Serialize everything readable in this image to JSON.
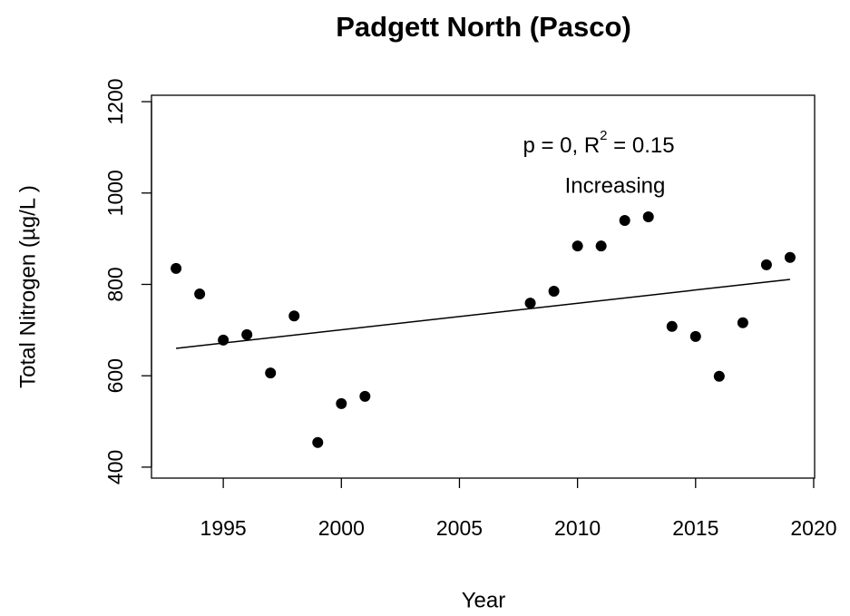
{
  "chart_data": {
    "type": "scatter",
    "title": "Padgett North (Pasco)",
    "x_label": "Year",
    "y_label": "Total Nitrogen (µg/L )",
    "x": [
      1993,
      1994,
      1995,
      1996,
      1997,
      1998,
      1999,
      2000,
      2001,
      2008,
      2009,
      2010,
      2011,
      2012,
      2013,
      2014,
      2015,
      2016,
      2017,
      2018,
      2019
    ],
    "values": [
      835,
      779,
      678,
      690,
      606,
      731,
      454,
      539,
      555,
      759,
      785,
      884,
      884,
      940,
      948,
      708,
      686,
      599,
      716,
      843,
      859
    ],
    "color": "#000000",
    "trend": {
      "x": [
        1993,
        2019
      ],
      "values": [
        660,
        811
      ]
    },
    "annotations": [
      [
        "p = 0, R",
        "2",
        " = 0.15"
      ],
      "Increasing"
    ],
    "xlim": [
      1991.96,
      2020.04
    ],
    "xticks": [
      1995,
      2000,
      2005,
      2010,
      2015,
      2020
    ],
    "ylim": [
      376,
      1214
    ],
    "yticks": [
      400,
      600,
      800,
      1000,
      1200
    ]
  }
}
